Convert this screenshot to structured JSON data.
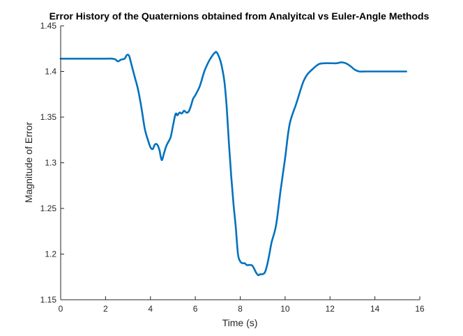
{
  "chart_data": {
    "type": "line",
    "title": "Error History of the Quaternions obtained from Analyitcal vs Euler-Angle Methods",
    "xlabel": "Time (s)",
    "ylabel": "Magnitude of Error",
    "xlim": [
      0,
      16
    ],
    "ylim": [
      1.15,
      1.45
    ],
    "xticks": [
      0,
      2,
      4,
      6,
      8,
      10,
      12,
      14,
      16
    ],
    "yticks": [
      1.15,
      1.2,
      1.25,
      1.3,
      1.35,
      1.4,
      1.45
    ],
    "xtick_labels": [
      "0",
      "2",
      "4",
      "6",
      "8",
      "10",
      "12",
      "14",
      "16"
    ],
    "ytick_labels": [
      "1.15",
      "1.2",
      "1.25",
      "1.3",
      "1.35",
      "1.4",
      "1.45"
    ],
    "grid": false,
    "line_color": "#0072BD",
    "series": [
      {
        "x": [
          0,
          0.5,
          1.0,
          1.5,
          2.0,
          2.3,
          2.45,
          2.55,
          2.7,
          2.85,
          2.95,
          3.05,
          3.15,
          3.3,
          3.45,
          3.6,
          3.75,
          3.9,
          4.0,
          4.1,
          4.2,
          4.3,
          4.4,
          4.5,
          4.6,
          4.7,
          4.8,
          4.9,
          5.0,
          5.1,
          5.15,
          5.2,
          5.3,
          5.4,
          5.5,
          5.6,
          5.7,
          5.8,
          5.9,
          6.0,
          6.2,
          6.4,
          6.6,
          6.75,
          6.85,
          6.95,
          7.1,
          7.2,
          7.3,
          7.4,
          7.5,
          7.6,
          7.7,
          7.8,
          7.9,
          8.0,
          8.1,
          8.2,
          8.3,
          8.5,
          8.6,
          8.7,
          8.8,
          8.9,
          9.0,
          9.1,
          9.2,
          9.3,
          9.4,
          9.6,
          9.8,
          10.0,
          10.2,
          10.5,
          10.8,
          11.0,
          11.2,
          11.5,
          11.8,
          12.0,
          12.3,
          12.5,
          12.7,
          12.9,
          13.0,
          13.1,
          13.3,
          13.6,
          14.0,
          14.5,
          15.0,
          15.4
        ],
        "y": [
          1.414,
          1.414,
          1.414,
          1.414,
          1.414,
          1.414,
          1.413,
          1.411,
          1.413,
          1.414,
          1.418,
          1.417,
          1.408,
          1.394,
          1.38,
          1.36,
          1.337,
          1.324,
          1.317,
          1.315,
          1.32,
          1.32,
          1.314,
          1.303,
          1.31,
          1.318,
          1.323,
          1.328,
          1.34,
          1.352,
          1.354,
          1.352,
          1.355,
          1.354,
          1.357,
          1.355,
          1.356,
          1.362,
          1.37,
          1.374,
          1.384,
          1.4,
          1.411,
          1.417,
          1.42,
          1.421,
          1.413,
          1.403,
          1.388,
          1.36,
          1.32,
          1.285,
          1.255,
          1.23,
          1.2,
          1.192,
          1.19,
          1.19,
          1.188,
          1.188,
          1.185,
          1.18,
          1.177,
          1.178,
          1.178,
          1.18,
          1.188,
          1.2,
          1.213,
          1.232,
          1.27,
          1.305,
          1.342,
          1.365,
          1.388,
          1.397,
          1.402,
          1.408,
          1.409,
          1.409,
          1.409,
          1.41,
          1.409,
          1.406,
          1.404,
          1.402,
          1.4,
          1.4,
          1.4,
          1.4,
          1.4,
          1.4
        ]
      }
    ]
  }
}
